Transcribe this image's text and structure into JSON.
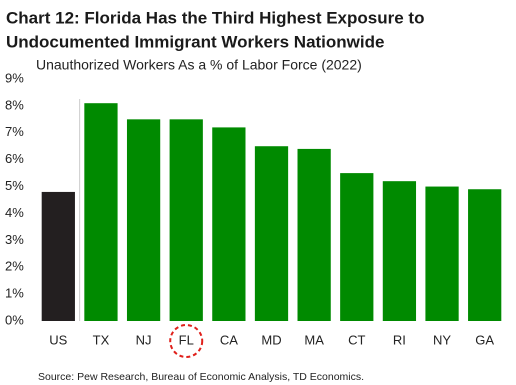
{
  "chart_data": {
    "type": "bar",
    "title": [
      "Chart 12: Florida Has the Third Highest Exposure to",
      "Undocumented Immigrant Workers Nationwide"
    ],
    "subtitle": "Unauthorized Workers As a % of Labor Force (2022)",
    "source": "Source: Pew Research, Bureau of Economic Analysis, TD Economics.",
    "categories": [
      "US",
      "TX",
      "NJ",
      "FL",
      "CA",
      "MD",
      "MA",
      "CT",
      "RI",
      "NY",
      "GA"
    ],
    "values": [
      4.8,
      8.1,
      7.5,
      7.5,
      7.2,
      6.5,
      6.4,
      5.5,
      5.2,
      5.0,
      4.9
    ],
    "colors": [
      "#231f20",
      "#008a00",
      "#008a00",
      "#008a00",
      "#008a00",
      "#008a00",
      "#008a00",
      "#008a00",
      "#008a00",
      "#008a00",
      "#008a00"
    ],
    "highlight_index": 3,
    "highlight_color": "#e0201b",
    "ylim": [
      0,
      9
    ],
    "yticks": [
      {
        "value": 0,
        "label": "0%"
      },
      {
        "value": 1,
        "label": "1%"
      },
      {
        "value": 2,
        "label": "2%"
      },
      {
        "value": 3,
        "label": "3%"
      },
      {
        "value": 4,
        "label": "4%"
      },
      {
        "value": 5,
        "label": "5%"
      },
      {
        "value": 6,
        "label": "6%"
      },
      {
        "value": 7,
        "label": "7%"
      },
      {
        "value": 8,
        "label": "8%"
      },
      {
        "value": 9,
        "label": "9%"
      }
    ],
    "grid": false
  }
}
